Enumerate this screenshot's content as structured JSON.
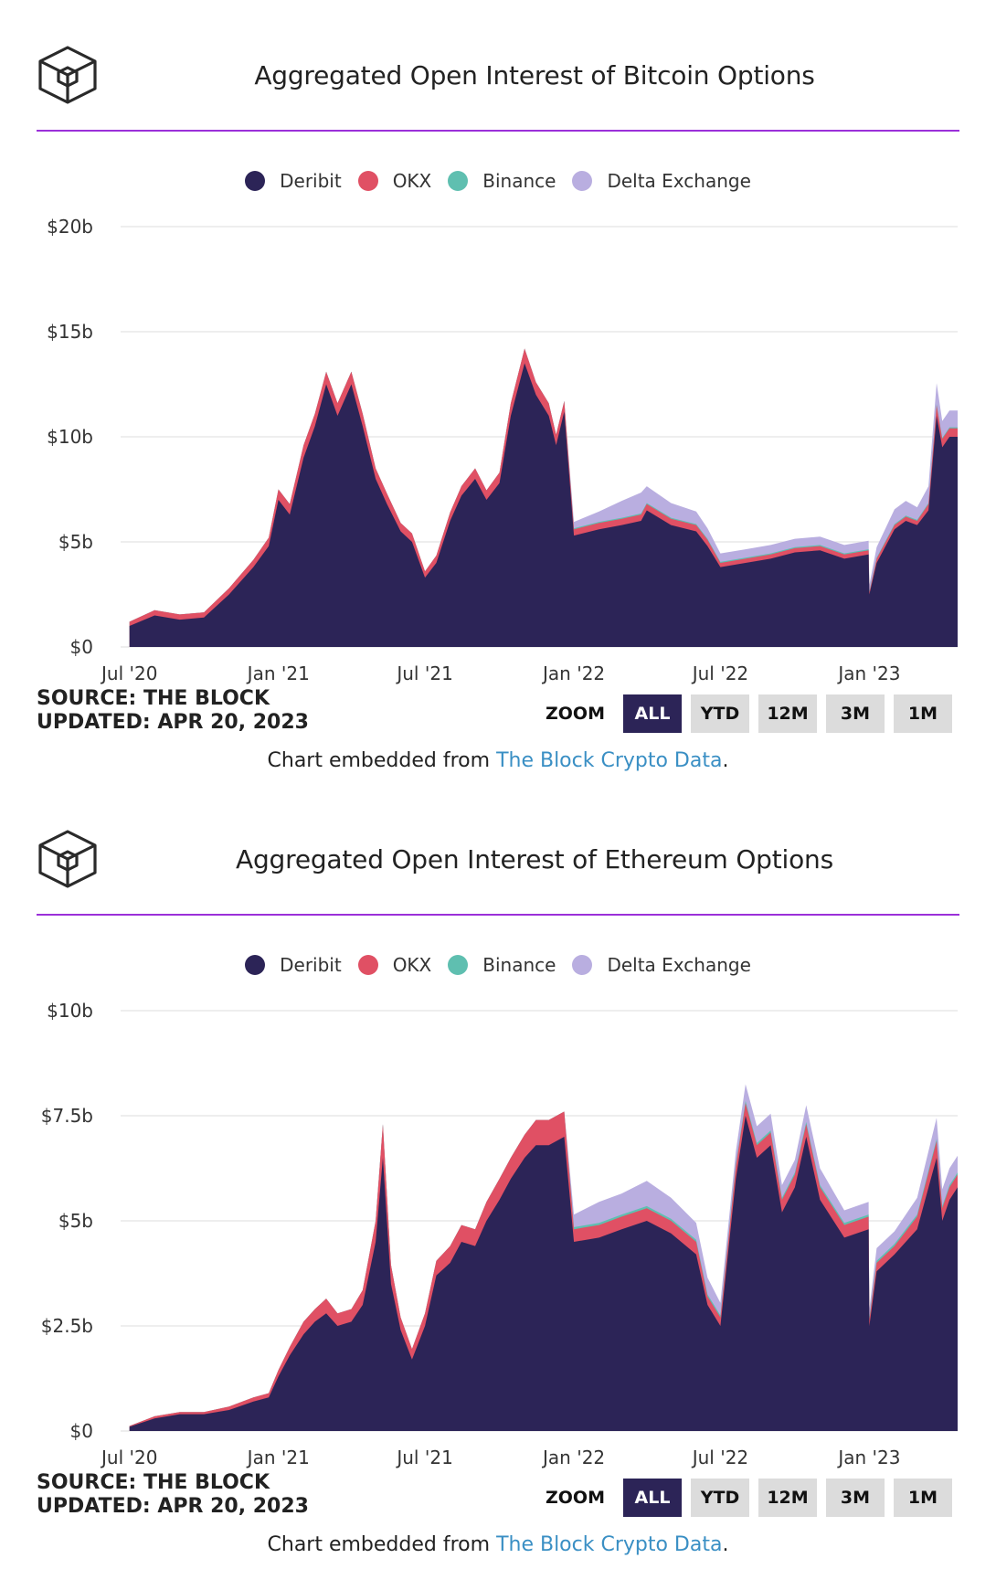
{
  "panels": [
    {
      "title": "Aggregated Open Interest of Bitcoin Options",
      "legend": [
        {
          "name": "Deribit",
          "color": "#2c2457"
        },
        {
          "name": "OKX",
          "color": "#e05064"
        },
        {
          "name": "Binance",
          "color": "#5fbfb0"
        },
        {
          "name": "Delta Exchange",
          "color": "#b9aee0"
        }
      ],
      "source_line": "SOURCE: THE BLOCK",
      "updated_line": "UPDATED: APR 20, 2023",
      "zoom_label": "ZOOM",
      "zoom_buttons": [
        "ALL",
        "YTD",
        "12M",
        "3M",
        "1M"
      ],
      "embed_prefix": "Chart embedded from",
      "embed_link": "The Block Crypto Data",
      "embed_suffix": "."
    },
    {
      "title": "Aggregated Open Interest of Ethereum Options",
      "legend": [
        {
          "name": "Deribit",
          "color": "#2c2457"
        },
        {
          "name": "OKX",
          "color": "#e05064"
        },
        {
          "name": "Binance",
          "color": "#5fbfb0"
        },
        {
          "name": "Delta Exchange",
          "color": "#b9aee0"
        }
      ],
      "source_line": "SOURCE: THE BLOCK",
      "updated_line": "UPDATED: APR 20, 2023",
      "zoom_label": "ZOOM",
      "zoom_buttons": [
        "ALL",
        "YTD",
        "12M",
        "3M",
        "1M"
      ],
      "embed_prefix": "Chart embedded from",
      "embed_link": "The Block Crypto Data",
      "embed_suffix": "."
    }
  ],
  "chart_data": [
    {
      "type": "area",
      "stacked": true,
      "title": "Aggregated Open Interest of Bitcoin Options",
      "ylim": [
        0,
        20
      ],
      "y_ticks": [
        0,
        5,
        10,
        15,
        20
      ],
      "y_tick_labels": [
        "$0",
        "$5b",
        "$10b",
        "$15b",
        "$20b"
      ],
      "x_tick_labels": [
        "Jul '20",
        "Jan '21",
        "Jul '21",
        "Jan '22",
        "Jul '22",
        "Jan '23"
      ],
      "x_tick_dates": [
        "2020-07-01",
        "2021-01-01",
        "2021-07-01",
        "2022-01-01",
        "2022-07-01",
        "2023-01-01"
      ],
      "grid": true,
      "legend_position": "top-center",
      "x": [
        "2020-07-01",
        "2020-08-01",
        "2020-09-01",
        "2020-10-01",
        "2020-11-01",
        "2020-12-01",
        "2020-12-20",
        "2021-01-01",
        "2021-01-15",
        "2021-02-01",
        "2021-02-15",
        "2021-03-01",
        "2021-03-15",
        "2021-04-01",
        "2021-04-15",
        "2021-05-01",
        "2021-05-15",
        "2021-06-01",
        "2021-06-15",
        "2021-07-01",
        "2021-07-15",
        "2021-08-01",
        "2021-08-15",
        "2021-09-01",
        "2021-09-15",
        "2021-10-01",
        "2021-10-15",
        "2021-11-01",
        "2021-11-15",
        "2021-12-01",
        "2021-12-10",
        "2021-12-20",
        "2022-01-01",
        "2022-02-01",
        "2022-03-01",
        "2022-03-25",
        "2022-04-01",
        "2022-05-01",
        "2022-06-01",
        "2022-06-15",
        "2022-07-01",
        "2022-08-01",
        "2022-09-01",
        "2022-10-01",
        "2022-11-01",
        "2022-12-01",
        "2022-12-31",
        "2023-01-01",
        "2023-01-10",
        "2023-02-01",
        "2023-02-15",
        "2023-03-01",
        "2023-03-15",
        "2023-03-25",
        "2023-04-01",
        "2023-04-10",
        "2023-04-20"
      ],
      "series": [
        {
          "name": "Deribit",
          "values": [
            1.0,
            1.5,
            1.3,
            1.4,
            2.5,
            3.8,
            4.8,
            7.0,
            6.3,
            9.0,
            10.5,
            12.5,
            11.0,
            12.5,
            10.5,
            8.0,
            6.8,
            5.5,
            5.0,
            3.3,
            4.0,
            6.0,
            7.2,
            8.0,
            7.0,
            7.8,
            11.0,
            13.5,
            12.0,
            11.0,
            9.6,
            11.2,
            5.3,
            5.6,
            5.8,
            6.0,
            6.5,
            5.8,
            5.5,
            4.8,
            3.8,
            4.0,
            4.2,
            4.5,
            4.6,
            4.2,
            4.4,
            2.5,
            4.0,
            5.6,
            6.0,
            5.8,
            6.5,
            11.0,
            9.5,
            10.0,
            10.0
          ]
        },
        {
          "name": "OKX",
          "values": [
            0.2,
            0.25,
            0.25,
            0.25,
            0.3,
            0.35,
            0.4,
            0.5,
            0.5,
            0.6,
            0.6,
            0.6,
            0.6,
            0.6,
            0.6,
            0.5,
            0.5,
            0.4,
            0.4,
            0.3,
            0.35,
            0.4,
            0.45,
            0.5,
            0.45,
            0.5,
            0.6,
            0.7,
            0.6,
            0.6,
            0.5,
            0.5,
            0.3,
            0.3,
            0.3,
            0.3,
            0.3,
            0.3,
            0.3,
            0.3,
            0.2,
            0.2,
            0.2,
            0.2,
            0.2,
            0.2,
            0.2,
            0.1,
            0.2,
            0.2,
            0.2,
            0.2,
            0.3,
            0.5,
            0.4,
            0.4,
            0.4
          ]
        },
        {
          "name": "Binance",
          "values": [
            0,
            0,
            0,
            0,
            0,
            0,
            0,
            0,
            0,
            0,
            0,
            0,
            0,
            0,
            0,
            0,
            0,
            0,
            0,
            0,
            0,
            0,
            0,
            0,
            0,
            0,
            0,
            0,
            0,
            0,
            0,
            0,
            0.05,
            0.05,
            0.05,
            0.05,
            0.05,
            0.05,
            0.05,
            0.05,
            0.05,
            0.05,
            0.05,
            0.05,
            0.05,
            0.05,
            0.05,
            0.05,
            0.05,
            0.05,
            0.05,
            0.05,
            0.05,
            0.05,
            0.05,
            0.05,
            0.05
          ]
        },
        {
          "name": "Delta Exchange",
          "values": [
            0,
            0,
            0,
            0,
            0,
            0,
            0,
            0,
            0,
            0,
            0,
            0,
            0,
            0,
            0,
            0,
            0,
            0,
            0,
            0,
            0,
            0,
            0,
            0,
            0,
            0,
            0,
            0,
            0,
            0,
            0,
            0,
            0.3,
            0.5,
            0.8,
            1.0,
            0.8,
            0.7,
            0.6,
            0.5,
            0.4,
            0.4,
            0.4,
            0.4,
            0.4,
            0.4,
            0.4,
            0.3,
            0.5,
            0.7,
            0.7,
            0.6,
            0.8,
            1.0,
            0.8,
            0.8,
            0.8
          ]
        }
      ]
    },
    {
      "type": "area",
      "stacked": true,
      "title": "Aggregated Open Interest of Ethereum Options",
      "ylim": [
        0,
        10
      ],
      "y_ticks": [
        0,
        2.5,
        5,
        7.5,
        10
      ],
      "y_tick_labels": [
        "$0",
        "$2.5b",
        "$5b",
        "$7.5b",
        "$10b"
      ],
      "x_tick_labels": [
        "Jul '20",
        "Jan '21",
        "Jul '21",
        "Jan '22",
        "Jul '22",
        "Jan '23"
      ],
      "x_tick_dates": [
        "2020-07-01",
        "2021-01-01",
        "2021-07-01",
        "2022-01-01",
        "2022-07-01",
        "2023-01-01"
      ],
      "grid": true,
      "legend_position": "top-center",
      "x": [
        "2020-07-01",
        "2020-08-01",
        "2020-09-01",
        "2020-10-01",
        "2020-11-01",
        "2020-12-01",
        "2020-12-20",
        "2021-01-01",
        "2021-01-15",
        "2021-02-01",
        "2021-02-15",
        "2021-03-01",
        "2021-03-15",
        "2021-04-01",
        "2021-04-15",
        "2021-05-01",
        "2021-05-10",
        "2021-05-20",
        "2021-06-01",
        "2021-06-15",
        "2021-07-01",
        "2021-07-15",
        "2021-08-01",
        "2021-08-15",
        "2021-09-01",
        "2021-09-15",
        "2021-10-01",
        "2021-10-15",
        "2021-11-01",
        "2021-11-15",
        "2021-12-01",
        "2021-12-20",
        "2022-01-01",
        "2022-02-01",
        "2022-03-01",
        "2022-04-01",
        "2022-05-01",
        "2022-06-01",
        "2022-06-15",
        "2022-07-01",
        "2022-07-20",
        "2022-08-01",
        "2022-08-15",
        "2022-09-01",
        "2022-09-15",
        "2022-10-01",
        "2022-10-15",
        "2022-11-01",
        "2022-12-01",
        "2022-12-31",
        "2023-01-01",
        "2023-01-10",
        "2023-02-01",
        "2023-03-01",
        "2023-03-25",
        "2023-04-01",
        "2023-04-10",
        "2023-04-20"
      ],
      "series": [
        {
          "name": "Deribit",
          "values": [
            0.1,
            0.3,
            0.4,
            0.4,
            0.5,
            0.7,
            0.8,
            1.3,
            1.8,
            2.3,
            2.6,
            2.8,
            2.5,
            2.6,
            3.0,
            4.5,
            6.5,
            3.5,
            2.4,
            1.7,
            2.5,
            3.7,
            4.0,
            4.5,
            4.4,
            5.0,
            5.5,
            6.0,
            6.5,
            6.8,
            6.8,
            7.0,
            4.5,
            4.6,
            4.8,
            5.0,
            4.7,
            4.2,
            3.0,
            2.5,
            6.0,
            7.5,
            6.5,
            6.8,
            5.2,
            5.8,
            7.0,
            5.5,
            4.6,
            4.8,
            2.5,
            3.8,
            4.2,
            4.8,
            6.5,
            5.0,
            5.5,
            5.8
          ]
        },
        {
          "name": "OKX",
          "values": [
            0.02,
            0.05,
            0.05,
            0.05,
            0.08,
            0.1,
            0.1,
            0.15,
            0.2,
            0.3,
            0.3,
            0.35,
            0.3,
            0.3,
            0.35,
            0.5,
            0.8,
            0.45,
            0.3,
            0.25,
            0.3,
            0.35,
            0.4,
            0.4,
            0.4,
            0.45,
            0.5,
            0.5,
            0.55,
            0.6,
            0.6,
            0.6,
            0.3,
            0.3,
            0.3,
            0.3,
            0.3,
            0.3,
            0.2,
            0.2,
            0.3,
            0.3,
            0.3,
            0.3,
            0.3,
            0.3,
            0.3,
            0.3,
            0.3,
            0.3,
            0.15,
            0.2,
            0.2,
            0.3,
            0.4,
            0.3,
            0.3,
            0.3
          ]
        },
        {
          "name": "Binance",
          "values": [
            0,
            0,
            0,
            0,
            0,
            0,
            0,
            0,
            0,
            0,
            0,
            0,
            0,
            0,
            0,
            0,
            0,
            0,
            0,
            0,
            0,
            0,
            0,
            0,
            0,
            0,
            0,
            0,
            0,
            0,
            0,
            0,
            0.05,
            0.05,
            0.05,
            0.05,
            0.05,
            0.05,
            0.05,
            0.05,
            0.05,
            0.05,
            0.05,
            0.05,
            0.05,
            0.05,
            0.05,
            0.05,
            0.05,
            0.05,
            0.05,
            0.05,
            0.05,
            0.05,
            0.05,
            0.05,
            0.05,
            0.05
          ]
        },
        {
          "name": "Delta Exchange",
          "values": [
            0,
            0,
            0,
            0,
            0,
            0,
            0,
            0,
            0,
            0,
            0,
            0,
            0,
            0,
            0,
            0,
            0,
            0,
            0,
            0,
            0,
            0,
            0,
            0,
            0,
            0,
            0,
            0,
            0,
            0,
            0,
            0,
            0.3,
            0.5,
            0.5,
            0.6,
            0.5,
            0.4,
            0.4,
            0.3,
            0.3,
            0.4,
            0.4,
            0.4,
            0.3,
            0.3,
            0.4,
            0.4,
            0.3,
            0.3,
            0.2,
            0.3,
            0.3,
            0.4,
            0.5,
            0.4,
            0.4,
            0.4
          ]
        }
      ]
    }
  ]
}
